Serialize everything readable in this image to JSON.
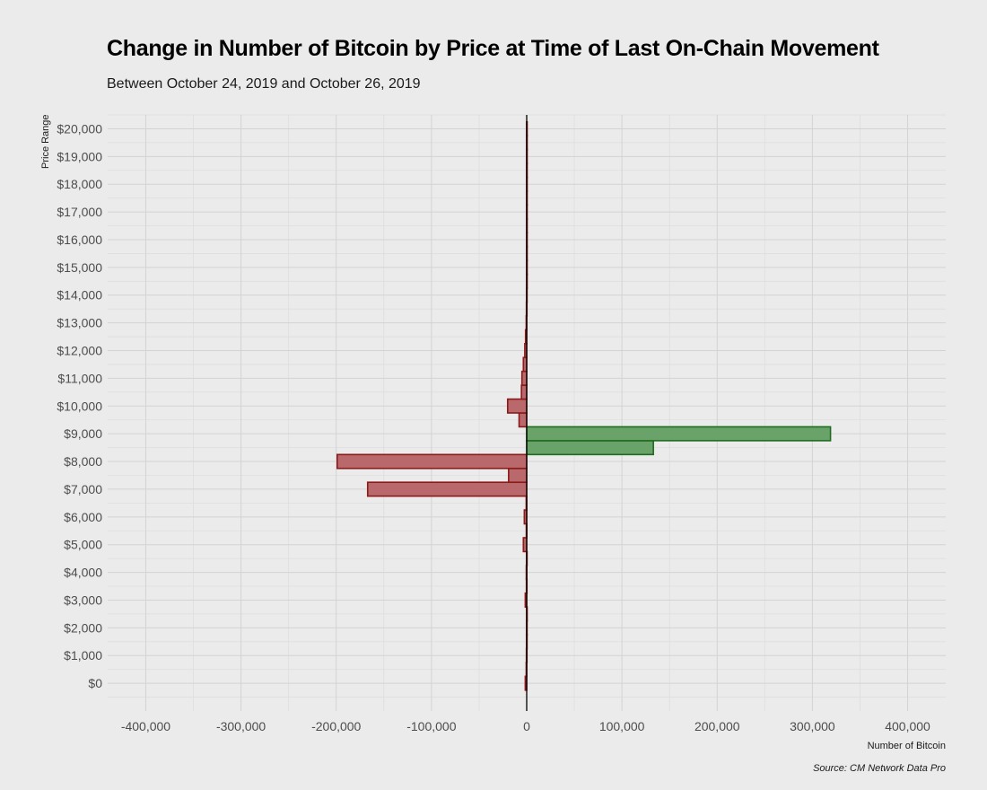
{
  "chart_data": {
    "type": "bar",
    "orientation": "horizontal",
    "title": "Change in Number of Bitcoin by Price at Time of Last On-Chain Movement",
    "subtitle": "Between October 24, 2019 and October 26, 2019",
    "xlabel": "Number of Bitcoin",
    "ylabel": "Price Range",
    "source": "Source: CM Network Data Pro",
    "xlim": [
      -440000,
      440000
    ],
    "ylim": [
      -1000,
      20500
    ],
    "x_ticks": [
      -400000,
      -300000,
      -200000,
      -100000,
      0,
      100000,
      200000,
      300000,
      400000
    ],
    "x_tick_labels": [
      "-400,000",
      "-300,000",
      "-200,000",
      "-100,000",
      "0",
      "100,000",
      "200,000",
      "300,000",
      "400,000"
    ],
    "y_ticks": [
      0,
      1000,
      2000,
      3000,
      4000,
      5000,
      6000,
      7000,
      8000,
      9000,
      10000,
      11000,
      12000,
      13000,
      14000,
      15000,
      16000,
      17000,
      18000,
      19000,
      20000
    ],
    "y_tick_labels": [
      "$0",
      "$1,000",
      "$2,000",
      "$3,000",
      "$4,000",
      "$5,000",
      "$6,000",
      "$7,000",
      "$8,000",
      "$9,000",
      "$10,000",
      "$11,000",
      "$12,000",
      "$13,000",
      "$14,000",
      "$15,000",
      "$16,000",
      "$17,000",
      "$18,000",
      "$19,000",
      "$20,000"
    ],
    "bin_width": 500,
    "grid": true,
    "legend": "none",
    "colors": {
      "positive_fill": "#6aa36a",
      "positive_stroke": "#1f6b1f",
      "negative_fill": "#b9686b",
      "negative_stroke": "#8b1a1a",
      "zero_line": "#000000"
    },
    "bins": [
      {
        "price": 0,
        "value": -1500
      },
      {
        "price": 500,
        "value": -500
      },
      {
        "price": 1000,
        "value": -300
      },
      {
        "price": 1500,
        "value": -200
      },
      {
        "price": 2000,
        "value": -200
      },
      {
        "price": 2500,
        "value": -100
      },
      {
        "price": 3000,
        "value": -1500
      },
      {
        "price": 3500,
        "value": -300
      },
      {
        "price": 4000,
        "value": -400
      },
      {
        "price": 4500,
        "value": -200
      },
      {
        "price": 5000,
        "value": -3500
      },
      {
        "price": 5500,
        "value": -400
      },
      {
        "price": 6000,
        "value": -2500
      },
      {
        "price": 6500,
        "value": -500
      },
      {
        "price": 7000,
        "value": -167000
      },
      {
        "price": 7500,
        "value": -19000
      },
      {
        "price": 8000,
        "value": -199000
      },
      {
        "price": 8500,
        "value": 133000
      },
      {
        "price": 9000,
        "value": 319000
      },
      {
        "price": 9500,
        "value": -8000
      },
      {
        "price": 10000,
        "value": -20000
      },
      {
        "price": 10500,
        "value": -5500
      },
      {
        "price": 11000,
        "value": -5000
      },
      {
        "price": 11500,
        "value": -3500
      },
      {
        "price": 12000,
        "value": -2000
      },
      {
        "price": 12500,
        "value": -1200
      },
      {
        "price": 13000,
        "value": -500
      },
      {
        "price": 13500,
        "value": -300
      },
      {
        "price": 14000,
        "value": -200
      },
      {
        "price": 14500,
        "value": -100
      },
      {
        "price": 15000,
        "value": -100
      },
      {
        "price": 15500,
        "value": -100
      },
      {
        "price": 16000,
        "value": -100
      },
      {
        "price": 16500,
        "value": -100
      },
      {
        "price": 17000,
        "value": -100
      },
      {
        "price": 17500,
        "value": -100
      },
      {
        "price": 18000,
        "value": -100
      },
      {
        "price": 18500,
        "value": -100
      },
      {
        "price": 19000,
        "value": -100
      },
      {
        "price": 19500,
        "value": -100
      },
      {
        "price": 20000,
        "value": -100
      }
    ]
  }
}
